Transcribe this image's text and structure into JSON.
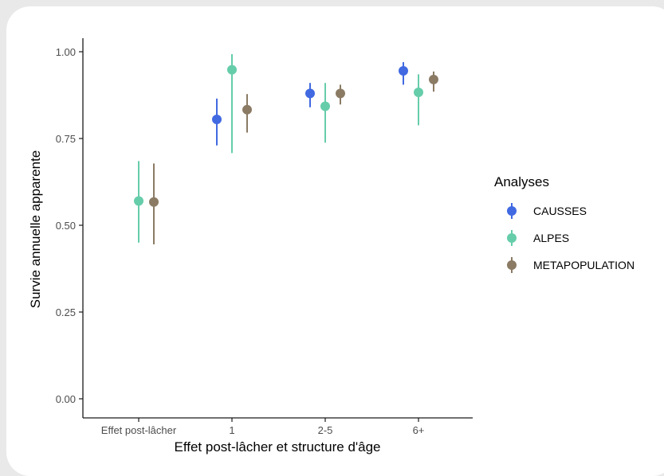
{
  "chart_data": {
    "type": "scatter",
    "title": "",
    "xlabel": "Effet post-lâcher et structure d'âge",
    "ylabel": "Survie annuelle apparente",
    "categories": [
      "Effet post-lâcher",
      "1",
      "2-5",
      "6+"
    ],
    "y_ticks": [
      "0.00",
      "0.25",
      "0.50",
      "0.75",
      "1.00"
    ],
    "ylim": [
      0,
      1.0
    ],
    "grid": false,
    "legend": {
      "title": "Analyses",
      "position": "right"
    },
    "series": [
      {
        "name": "CAUSSES",
        "color": "#4169e1",
        "points": [
          null,
          {
            "y": 0.805,
            "low": 0.73,
            "high": 0.865
          },
          {
            "y": 0.88,
            "low": 0.84,
            "high": 0.91
          },
          {
            "y": 0.945,
            "low": 0.905,
            "high": 0.97
          }
        ]
      },
      {
        "name": "ALPES",
        "color": "#66cdaa",
        "points": [
          {
            "y": 0.57,
            "low": 0.45,
            "high": 0.685
          },
          {
            "y": 0.948,
            "low": 0.708,
            "high": 0.993
          },
          {
            "y": 0.843,
            "low": 0.738,
            "high": 0.91
          },
          {
            "y": 0.883,
            "low": 0.788,
            "high": 0.935
          }
        ]
      },
      {
        "name": "METAPOPULATION",
        "color": "#8b7b65",
        "points": [
          {
            "y": 0.567,
            "low": 0.445,
            "high": 0.678
          },
          {
            "y": 0.833,
            "low": 0.767,
            "high": 0.878
          },
          {
            "y": 0.88,
            "low": 0.848,
            "high": 0.905
          },
          {
            "y": 0.92,
            "low": 0.885,
            "high": 0.943
          }
        ]
      }
    ]
  }
}
